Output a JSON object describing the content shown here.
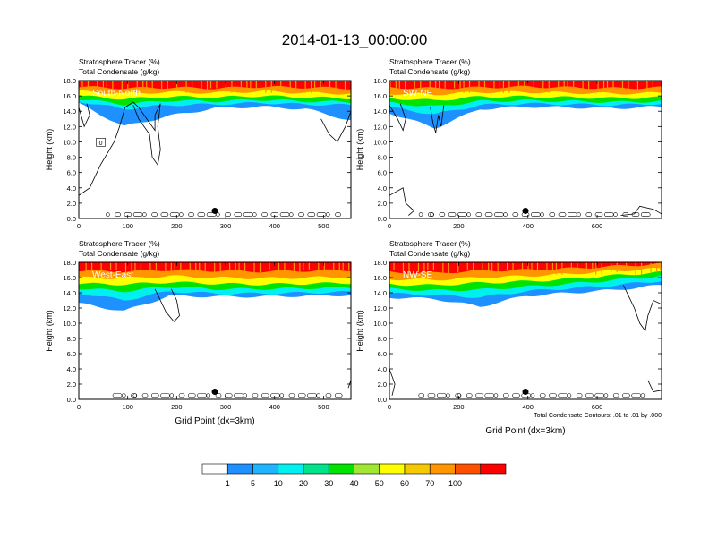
{
  "title": "2014-01-13_00:00:00",
  "chart_data": [
    {
      "type": "contour",
      "field_label": "Stratosphere Tracer",
      "field_units": "(%)",
      "contour_label": "Total Condensate",
      "contour_units": "(g/kg)",
      "panel_label": "South-North",
      "ylabel": "Height (km)",
      "xlabel": "",
      "xlim": [
        0,
        556
      ],
      "ylim": [
        0,
        18
      ],
      "xticks": [
        "0",
        "100",
        "200",
        "300",
        "400",
        "500"
      ],
      "xtick_values": [
        0,
        100,
        200,
        300,
        400,
        500
      ],
      "yticks": [
        "0.0",
        "2.0",
        "4.0",
        "6.0",
        "8.0",
        "10.0",
        "12.0",
        "14.0",
        "16.0",
        "18.0"
      ],
      "ytick_values": [
        0,
        2,
        4,
        6,
        8,
        10,
        12,
        14,
        16,
        18
      ],
      "marker": {
        "x": 278,
        "y": 1.0
      },
      "inline_label": {
        "text": "0",
        "x": 45,
        "y": 9.9
      },
      "tracer_layers": [
        {
          "level": 100,
          "base": [
            17.2,
            17.0,
            17.1,
            17.0,
            17.2,
            17.1,
            17.0
          ]
        },
        {
          "level": 70,
          "base": [
            16.6,
            16.3,
            16.5,
            16.4,
            16.6,
            16.4,
            16.3
          ]
        },
        {
          "level": 50,
          "base": [
            16.0,
            15.6,
            15.9,
            15.8,
            16.0,
            15.8,
            15.7
          ]
        },
        {
          "level": 30,
          "base": [
            15.6,
            14.9,
            15.4,
            15.3,
            15.5,
            15.3,
            15.2
          ]
        },
        {
          "level": 10,
          "base": [
            15.3,
            14.3,
            14.8,
            14.9,
            15.1,
            14.9,
            14.8
          ]
        },
        {
          "level": 1,
          "base": [
            15.0,
            12.0,
            13.4,
            14.4,
            14.6,
            14.3,
            12.8
          ]
        }
      ]
    },
    {
      "type": "contour",
      "field_label": "Stratosphere Tracer",
      "field_units": "(%)",
      "contour_label": "Total Condensate",
      "contour_units": "(g/kg)",
      "panel_label": "SW-NE",
      "ylabel": "Height (km)",
      "xlabel": "",
      "xlim": [
        0,
        786
      ],
      "ylim": [
        0,
        18
      ],
      "xticks": [
        "0",
        "200",
        "400",
        "600"
      ],
      "xtick_values": [
        0,
        200,
        400,
        600
      ],
      "yticks": [
        "0.0",
        "2.0",
        "4.0",
        "6.0",
        "8.0",
        "10.0",
        "12.0",
        "14.0",
        "16.0",
        "18.0"
      ],
      "ytick_values": [
        0,
        2,
        4,
        6,
        8,
        10,
        12,
        14,
        16,
        18
      ],
      "marker": {
        "x": 393,
        "y": 1.0
      },
      "tracer_layers": [
        {
          "level": 100,
          "base": [
            17.1,
            17.0,
            17.1,
            17.2,
            17.1,
            17.0,
            17.1
          ]
        },
        {
          "level": 70,
          "base": [
            16.3,
            16.2,
            16.5,
            16.5,
            16.4,
            16.3,
            16.4
          ]
        },
        {
          "level": 50,
          "base": [
            15.7,
            15.4,
            15.9,
            15.9,
            15.8,
            15.7,
            15.8
          ]
        },
        {
          "level": 30,
          "base": [
            15.1,
            14.6,
            15.3,
            15.4,
            15.3,
            15.2,
            15.3
          ]
        },
        {
          "level": 10,
          "base": [
            14.5,
            13.6,
            14.8,
            15.0,
            14.9,
            14.8,
            15.0
          ]
        },
        {
          "level": 1,
          "base": [
            13.8,
            11.8,
            14.3,
            14.6,
            14.5,
            14.4,
            14.6
          ]
        }
      ]
    },
    {
      "type": "contour",
      "field_label": "Stratosphere Tracer",
      "field_units": "(%)",
      "contour_label": "Total Condensate",
      "contour_units": "(g/kg)",
      "panel_label": "West-East",
      "ylabel": "Height (km)",
      "xlabel": "Grid Point (dx=3km)",
      "xlim": [
        0,
        556
      ],
      "ylim": [
        0,
        18
      ],
      "xticks": [
        "0",
        "100",
        "200",
        "300",
        "400",
        "500"
      ],
      "xtick_values": [
        0,
        100,
        200,
        300,
        400,
        500
      ],
      "yticks": [
        "0.0",
        "2.0",
        "4.0",
        "6.0",
        "8.0",
        "10.0",
        "12.0",
        "14.0",
        "16.0",
        "18.0"
      ],
      "ytick_values": [
        0,
        2,
        4,
        6,
        8,
        10,
        12,
        14,
        16,
        18
      ],
      "marker": {
        "x": 278,
        "y": 1.0
      },
      "tracer_layers": [
        {
          "level": 100,
          "base": [
            16.9,
            16.8,
            17.0,
            16.9,
            16.8,
            16.9,
            17.0
          ]
        },
        {
          "level": 70,
          "base": [
            16.0,
            15.9,
            16.2,
            16.0,
            15.9,
            16.0,
            16.1
          ]
        },
        {
          "level": 50,
          "base": [
            15.2,
            15.1,
            15.4,
            15.2,
            15.1,
            15.2,
            15.3
          ]
        },
        {
          "level": 30,
          "base": [
            14.6,
            14.2,
            14.8,
            14.5,
            14.5,
            14.6,
            14.7
          ]
        },
        {
          "level": 10,
          "base": [
            14.0,
            13.0,
            14.2,
            13.9,
            13.9,
            14.0,
            14.1
          ]
        },
        {
          "level": 1,
          "base": [
            12.6,
            11.6,
            13.6,
            13.5,
            13.5,
            13.6,
            13.7
          ]
        }
      ]
    },
    {
      "type": "contour",
      "field_label": "Stratosphere Tracer",
      "field_units": "(%)",
      "contour_label": "Total Condensate",
      "contour_units": "(g/kg)",
      "panel_label": "NW-SE",
      "ylabel": "Height (km)",
      "xlabel": "Grid Point (dx=3km)",
      "footnote": "Total Condensate Contours: .01 to .01 by .000",
      "xlim": [
        0,
        786
      ],
      "ylim": [
        0,
        18
      ],
      "xticks": [
        "0",
        "200",
        "400",
        "600"
      ],
      "xtick_values": [
        0,
        200,
        400,
        600
      ],
      "yticks": [
        "0.0",
        "2.0",
        "4.0",
        "6.0",
        "8.0",
        "10.0",
        "12.0",
        "14.0",
        "16.0",
        "18.0"
      ],
      "ytick_values": [
        0,
        2,
        4,
        6,
        8,
        10,
        12,
        14,
        16,
        18
      ],
      "marker": {
        "x": 393,
        "y": 1.0
      },
      "tracer_layers": [
        {
          "level": 100,
          "base": [
            16.7,
            16.6,
            16.9,
            17.0,
            17.2,
            17.5,
            17.8
          ]
        },
        {
          "level": 70,
          "base": [
            15.8,
            15.7,
            16.0,
            16.2,
            16.5,
            16.9,
            17.2
          ]
        },
        {
          "level": 50,
          "base": [
            15.1,
            15.0,
            15.3,
            15.5,
            15.8,
            16.3,
            16.7
          ]
        },
        {
          "level": 30,
          "base": [
            14.5,
            14.3,
            14.4,
            14.8,
            15.2,
            15.7,
            16.2
          ]
        },
        {
          "level": 10,
          "base": [
            13.9,
            13.7,
            13.4,
            14.2,
            14.6,
            15.0,
            15.6
          ]
        },
        {
          "level": 1,
          "base": [
            13.4,
            13.2,
            12.2,
            13.6,
            14.0,
            14.4,
            15.0
          ]
        }
      ]
    }
  ],
  "colorbar": {
    "levels": [
      "1",
      "5",
      "10",
      "20",
      "30",
      "40",
      "50",
      "60",
      "70",
      "100"
    ],
    "colors": [
      "#ffffff",
      "#1e90ff",
      "#1eb4ff",
      "#00f0f0",
      "#00e38a",
      "#00e300",
      "#a0e632",
      "#ffff00",
      "#f5c800",
      "#ff9600",
      "#ff5000",
      "#ff0000"
    ]
  }
}
